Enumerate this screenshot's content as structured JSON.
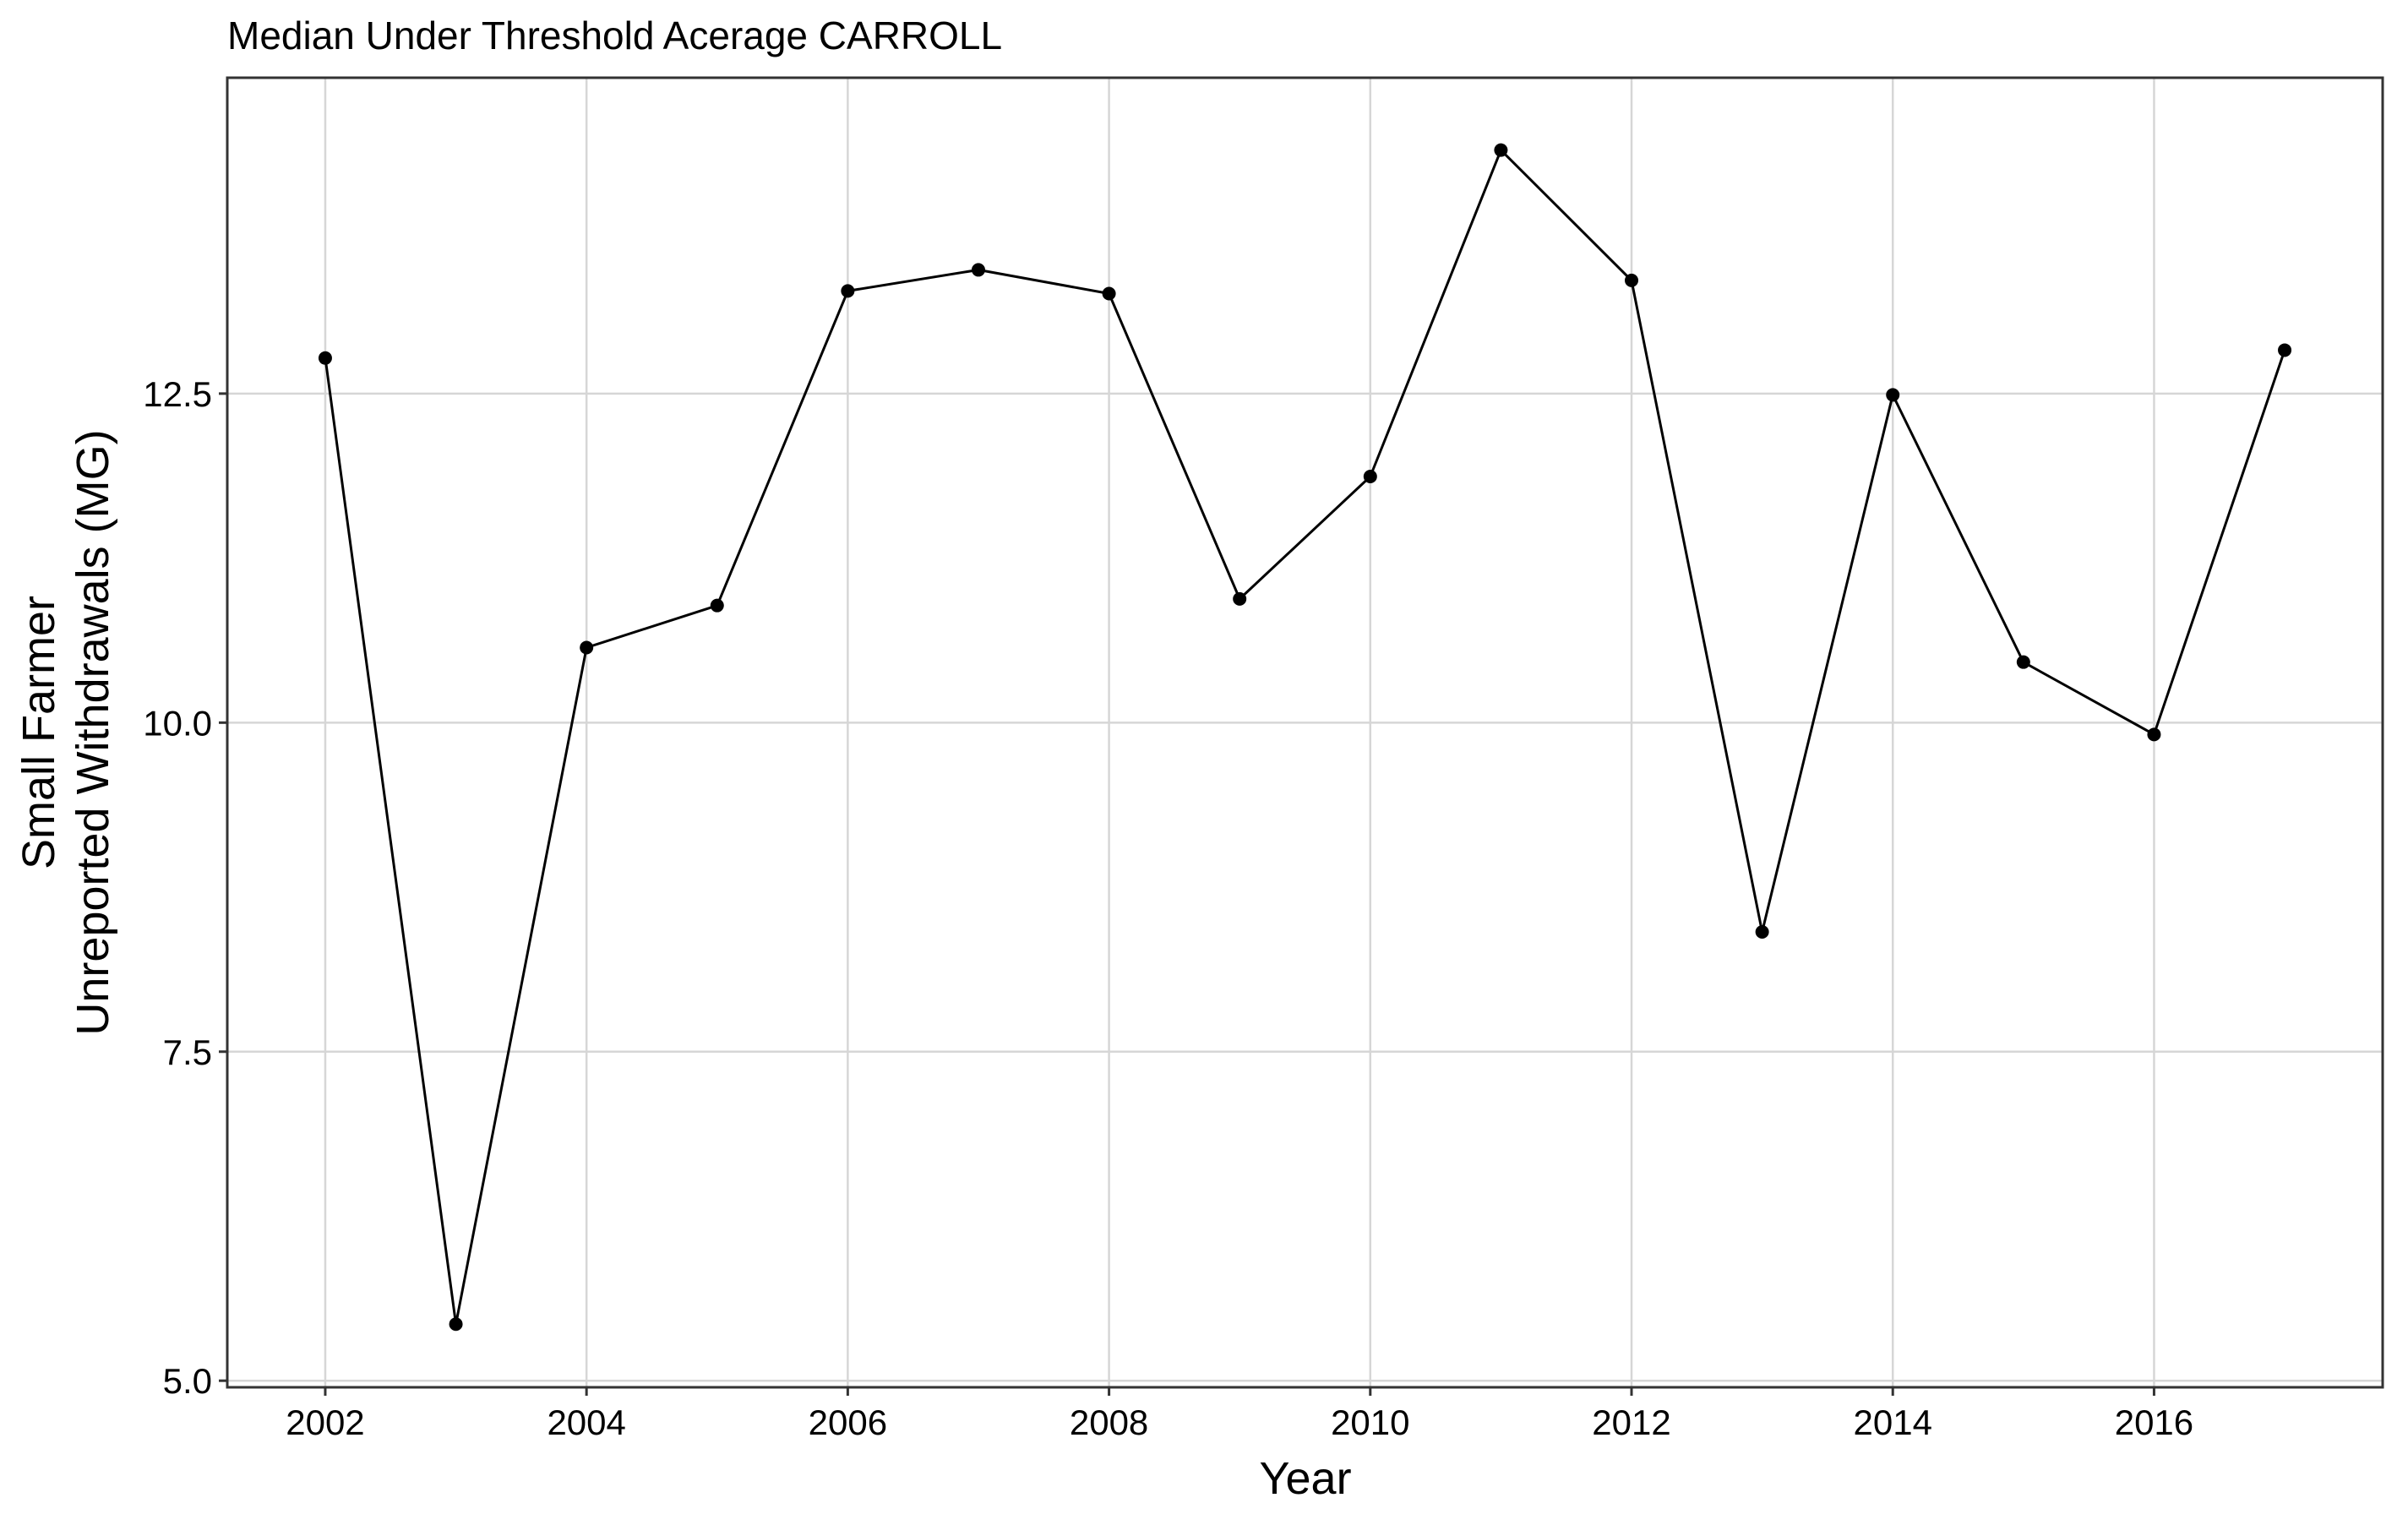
{
  "chart_data": {
    "type": "line",
    "title": "Median Under Threshold Acerage CARROLL",
    "xlabel": "Year",
    "ylabel_lines": [
      "Small Farmer",
      "Unreported Withdrawals (MG)"
    ],
    "xlim": [
      2001.25,
      2017.75
    ],
    "ylim": [
      4.95,
      14.9
    ],
    "xticks": [
      2002,
      2004,
      2006,
      2008,
      2010,
      2012,
      2014,
      2016
    ],
    "xtick_labels": [
      "2002",
      "2004",
      "2006",
      "2008",
      "2010",
      "2012",
      "2014",
      "2016"
    ],
    "yticks": [
      5.0,
      7.5,
      10.0,
      12.5
    ],
    "ytick_labels": [
      "5.0",
      "7.5",
      "10.0",
      "12.5"
    ],
    "grid": true,
    "line_color": "#000000",
    "series": [
      {
        "x": [
          2002,
          2003,
          2004,
          2005,
          2006,
          2007,
          2008,
          2009,
          2010,
          2011,
          2012,
          2013,
          2014,
          2015,
          2016,
          2017
        ],
        "y": [
          12.77,
          5.43,
          10.57,
          10.89,
          13.28,
          13.44,
          13.26,
          10.94,
          11.87,
          14.35,
          13.36,
          8.41,
          12.49,
          10.46,
          9.91,
          12.83
        ]
      }
    ]
  }
}
